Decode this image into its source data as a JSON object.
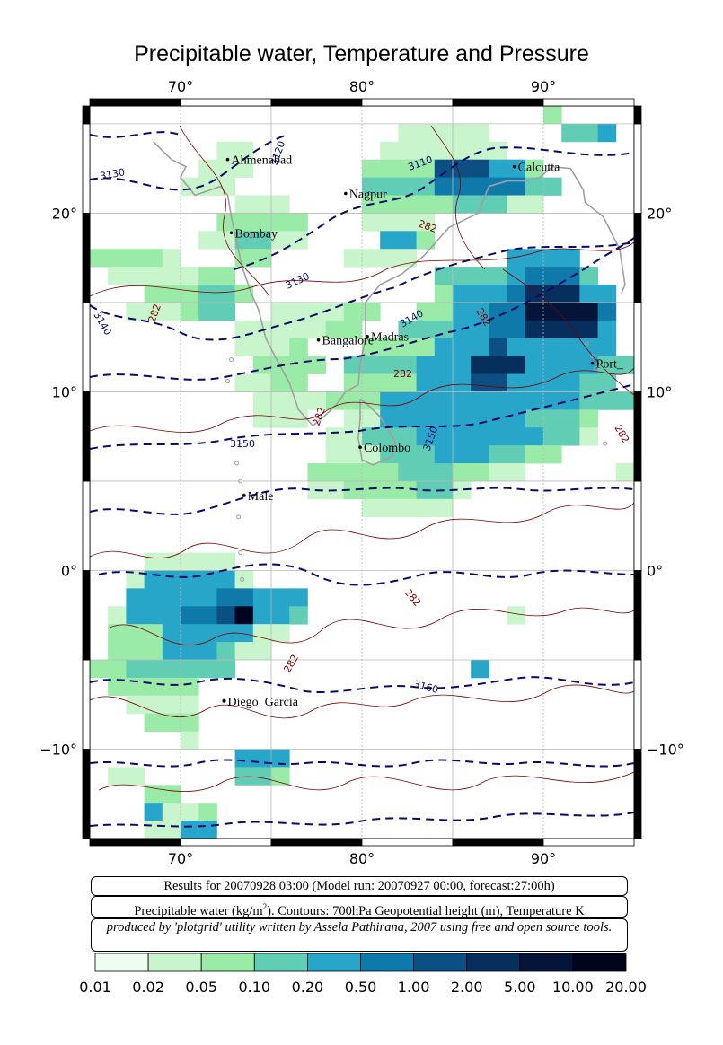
{
  "title": "Precipitable water, Temperature and Pressure",
  "map": {
    "lon_range": [
      65,
      95
    ],
    "lat_range": [
      -15,
      26
    ],
    "lon_ticks": [
      "70°",
      "80°",
      "90°"
    ],
    "lat_ticks": [
      "20°",
      "10°",
      "0°",
      "−10°"
    ],
    "cities": [
      {
        "name": "Ahmenabad",
        "lon": 72.6,
        "lat": 23.0
      },
      {
        "name": "Nagpur",
        "lon": 79.1,
        "lat": 21.1
      },
      {
        "name": "Calcutta",
        "lon": 88.4,
        "lat": 22.6
      },
      {
        "name": "Bombay",
        "lon": 72.8,
        "lat": 18.9
      },
      {
        "name": "Bangalore",
        "lon": 77.6,
        "lat": 12.9
      },
      {
        "name": "Madras",
        "lon": 80.3,
        "lat": 13.1
      },
      {
        "name": "Port_",
        "lon": 92.7,
        "lat": 11.6
      },
      {
        "name": "Colombo",
        "lon": 79.9,
        "lat": 6.9
      },
      {
        "name": "Male",
        "lon": 73.5,
        "lat": 4.2
      },
      {
        "name": "Diego_Garcia",
        "lon": 72.4,
        "lat": -7.3
      }
    ],
    "contour_labels_height": [
      "3130",
      "3120",
      "3110",
      "3130",
      "3140",
      "3140",
      "3150",
      "3150",
      "3160"
    ],
    "contour_labels_temp": [
      "282",
      "282",
      "282",
      "282",
      "282",
      "282",
      "282",
      "282"
    ],
    "colors": {
      "c1": "#effdf1",
      "c2": "#c8f5cc",
      "c3": "#9aeba8",
      "c4": "#61cdb4",
      "c5": "#28a6c9",
      "c6": "#0f7aaa",
      "c7": "#0b4f83",
      "c8": "#072f5e",
      "c9": "#041539",
      "c10": "#01041c",
      "height_contour": "#0a0a6a",
      "temp_contour": "#7a0000",
      "coast": "#a0a0a0",
      "grid": "#b8b8b8"
    }
  },
  "info": {
    "results": "Results for 20070928 03:00 (Model run: 20070927 00:00, forecast:27:00h)",
    "legend_pre": "Precipitable water (kg/m",
    "legend_sup": "2",
    "legend_post": ").  Contours: 700hPa Geopotential height (m), Temperature K",
    "credit": "produced by 'plotgrid' utility written by Assela Pathirana, 2007 using free and open source tools."
  },
  "colorbar": {
    "labels": [
      "0.01",
      "0.02",
      "0.05",
      "0.10",
      "0.20",
      "0.50",
      "1.00",
      "2.00",
      "5.00",
      "10.00",
      "20.00"
    ]
  }
}
